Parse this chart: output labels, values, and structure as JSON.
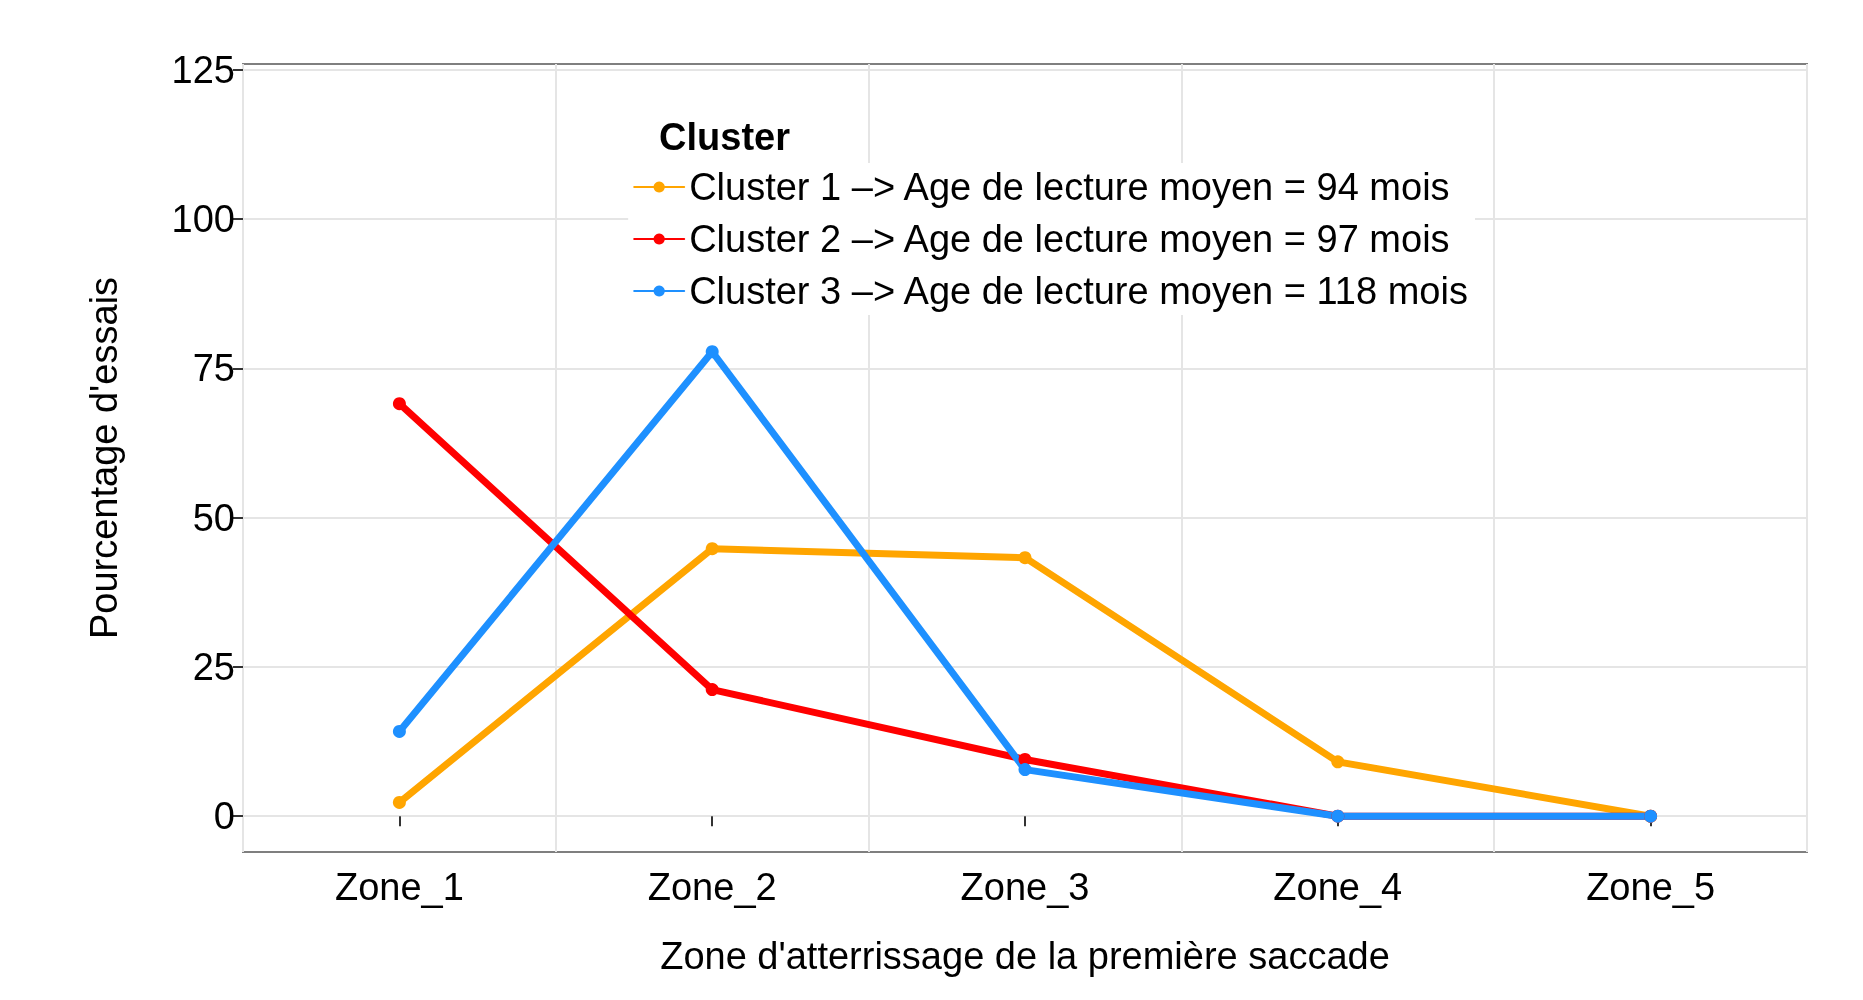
{
  "chart_data": {
    "type": "line",
    "xlabel": "Zone d'atterrissage de la première saccade",
    "ylabel": "Pourcentage d'essais",
    "legend_title": "Cluster",
    "categories": [
      "Zone_1",
      "Zone_2",
      "Zone_3",
      "Zone_4",
      "Zone_5"
    ],
    "series": [
      {
        "name": "Cluster 1 –> Age de lecture moyen = 94 mois",
        "color": "#ffa500",
        "values": [
          2.3,
          44.8,
          43.3,
          9.1,
          0
        ]
      },
      {
        "name": "Cluster 2 –> Age de lecture moyen = 97 mois",
        "color": "#ff0000",
        "values": [
          69.1,
          21.2,
          9.5,
          0,
          0
        ]
      },
      {
        "name": "Cluster 3 –> Age de lecture moyen = 118 mois",
        "color": "#1e90ff",
        "values": [
          14.2,
          77.8,
          7.8,
          0,
          0
        ]
      }
    ],
    "ylim": [
      -6,
      126
    ],
    "yticks": [
      0,
      25,
      50,
      75,
      100,
      125
    ],
    "grid": true,
    "legend": "top right",
    "marker": "circle",
    "line_style": "solid"
  }
}
